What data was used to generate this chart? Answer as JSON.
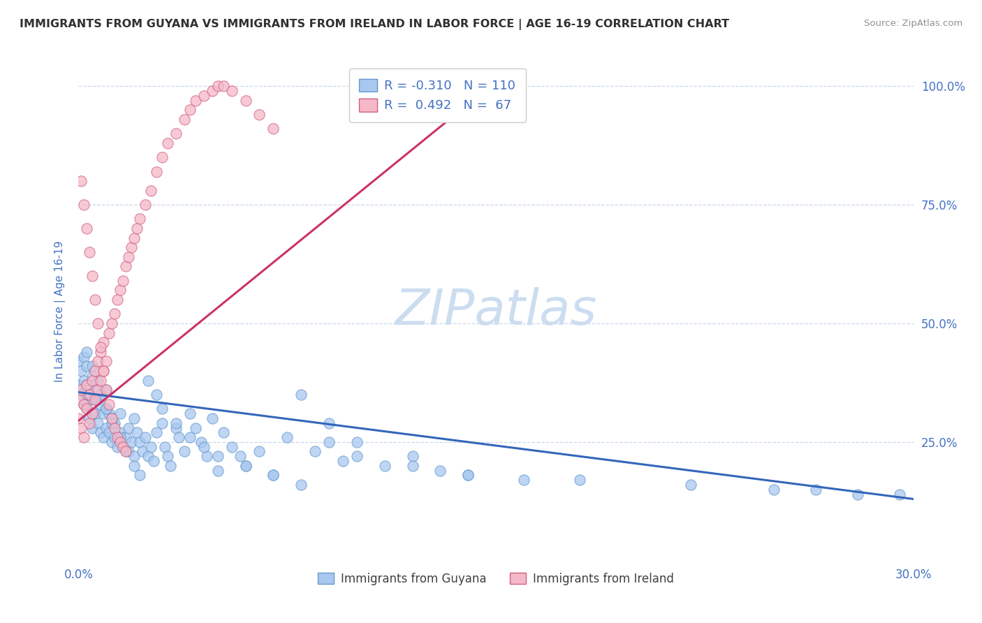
{
  "title": "IMMIGRANTS FROM GUYANA VS IMMIGRANTS FROM IRELAND IN LABOR FORCE | AGE 16-19 CORRELATION CHART",
  "source": "Source: ZipAtlas.com",
  "ylabel": "In Labor Force | Age 16-19",
  "xmin": 0.0,
  "xmax": 0.3,
  "ymin": 0.0,
  "ymax": 1.05,
  "guyana_R": -0.31,
  "guyana_N": 110,
  "ireland_R": 0.492,
  "ireland_N": 67,
  "guyana_color": "#a8c8f0",
  "guyana_edge_color": "#6699cc",
  "ireland_color": "#f5b8c8",
  "ireland_edge_color": "#d06080",
  "guyana_line_color": "#3366bb",
  "ireland_line_color": "#cc3366",
  "watermark_color": "#ccddf0",
  "legend_guyana": "Immigrants from Guyana",
  "legend_ireland": "Immigrants from Ireland",
  "background_color": "#ffffff",
  "grid_color": "#c8d8e8",
  "title_color": "#303030",
  "source_color": "#909090",
  "axis_label_color": "#4472c4",
  "guyana_trendline_x": [
    0.0,
    0.3
  ],
  "guyana_trendline_y": [
    0.355,
    0.13
  ],
  "ireland_trendline_x": [
    0.0,
    0.148
  ],
  "ireland_trendline_y": [
    0.295,
    1.0
  ],
  "guyana_scatter_x": [
    0.0,
    0.0,
    0.001,
    0.001,
    0.002,
    0.002,
    0.002,
    0.003,
    0.003,
    0.003,
    0.004,
    0.004,
    0.005,
    0.005,
    0.005,
    0.006,
    0.006,
    0.007,
    0.007,
    0.008,
    0.008,
    0.009,
    0.009,
    0.01,
    0.01,
    0.01,
    0.011,
    0.011,
    0.012,
    0.012,
    0.013,
    0.013,
    0.014,
    0.015,
    0.015,
    0.016,
    0.017,
    0.018,
    0.018,
    0.019,
    0.02,
    0.02,
    0.021,
    0.022,
    0.023,
    0.024,
    0.025,
    0.026,
    0.027,
    0.028,
    0.03,
    0.031,
    0.032,
    0.033,
    0.035,
    0.036,
    0.038,
    0.04,
    0.042,
    0.044,
    0.046,
    0.048,
    0.05,
    0.052,
    0.055,
    0.058,
    0.06,
    0.065,
    0.07,
    0.075,
    0.08,
    0.085,
    0.09,
    0.095,
    0.1,
    0.11,
    0.12,
    0.13,
    0.14,
    0.16,
    0.003,
    0.005,
    0.007,
    0.008,
    0.01,
    0.012,
    0.015,
    0.017,
    0.02,
    0.022,
    0.025,
    0.028,
    0.03,
    0.035,
    0.04,
    0.045,
    0.05,
    0.06,
    0.07,
    0.08,
    0.09,
    0.1,
    0.12,
    0.14,
    0.18,
    0.22,
    0.25,
    0.265,
    0.28,
    0.295
  ],
  "guyana_scatter_y": [
    0.37,
    0.42,
    0.35,
    0.4,
    0.33,
    0.38,
    0.43,
    0.32,
    0.37,
    0.41,
    0.3,
    0.35,
    0.28,
    0.34,
    0.39,
    0.31,
    0.36,
    0.29,
    0.34,
    0.27,
    0.33,
    0.26,
    0.31,
    0.28,
    0.32,
    0.36,
    0.27,
    0.31,
    0.25,
    0.3,
    0.26,
    0.29,
    0.24,
    0.27,
    0.31,
    0.24,
    0.26,
    0.23,
    0.28,
    0.25,
    0.3,
    0.22,
    0.27,
    0.25,
    0.23,
    0.26,
    0.22,
    0.24,
    0.21,
    0.27,
    0.29,
    0.24,
    0.22,
    0.2,
    0.28,
    0.26,
    0.23,
    0.31,
    0.28,
    0.25,
    0.22,
    0.3,
    0.19,
    0.27,
    0.24,
    0.22,
    0.2,
    0.23,
    0.18,
    0.26,
    0.35,
    0.23,
    0.29,
    0.21,
    0.25,
    0.2,
    0.22,
    0.19,
    0.18,
    0.17,
    0.44,
    0.41,
    0.38,
    0.35,
    0.32,
    0.29,
    0.26,
    0.23,
    0.2,
    0.18,
    0.38,
    0.35,
    0.32,
    0.29,
    0.26,
    0.24,
    0.22,
    0.2,
    0.18,
    0.16,
    0.25,
    0.22,
    0.2,
    0.18,
    0.17,
    0.16,
    0.15,
    0.15,
    0.14,
    0.14
  ],
  "ireland_scatter_x": [
    0.0,
    0.0,
    0.001,
    0.001,
    0.002,
    0.002,
    0.003,
    0.003,
    0.004,
    0.004,
    0.005,
    0.005,
    0.006,
    0.006,
    0.007,
    0.007,
    0.008,
    0.008,
    0.009,
    0.009,
    0.01,
    0.011,
    0.012,
    0.013,
    0.014,
    0.015,
    0.016,
    0.017,
    0.018,
    0.019,
    0.02,
    0.021,
    0.022,
    0.024,
    0.026,
    0.028,
    0.03,
    0.032,
    0.035,
    0.038,
    0.04,
    0.042,
    0.045,
    0.048,
    0.05,
    0.052,
    0.055,
    0.06,
    0.065,
    0.07,
    0.001,
    0.002,
    0.003,
    0.004,
    0.005,
    0.006,
    0.007,
    0.008,
    0.009,
    0.01,
    0.011,
    0.012,
    0.013,
    0.014,
    0.015,
    0.016,
    0.017
  ],
  "ireland_scatter_y": [
    0.3,
    0.34,
    0.28,
    0.36,
    0.26,
    0.33,
    0.32,
    0.37,
    0.29,
    0.35,
    0.31,
    0.38,
    0.34,
    0.4,
    0.36,
    0.42,
    0.38,
    0.44,
    0.4,
    0.46,
    0.42,
    0.48,
    0.5,
    0.52,
    0.55,
    0.57,
    0.59,
    0.62,
    0.64,
    0.66,
    0.68,
    0.7,
    0.72,
    0.75,
    0.78,
    0.82,
    0.85,
    0.88,
    0.9,
    0.93,
    0.95,
    0.97,
    0.98,
    0.99,
    1.0,
    1.0,
    0.99,
    0.97,
    0.94,
    0.91,
    0.8,
    0.75,
    0.7,
    0.65,
    0.6,
    0.55,
    0.5,
    0.45,
    0.4,
    0.36,
    0.33,
    0.3,
    0.28,
    0.26,
    0.25,
    0.24,
    0.23
  ]
}
